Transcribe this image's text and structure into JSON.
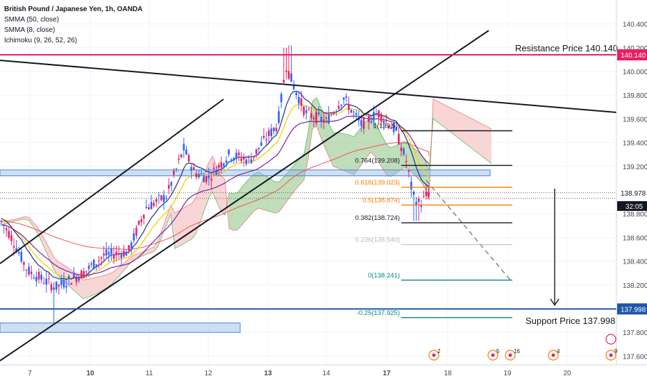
{
  "legend": {
    "symbol": "British Pound / Japanese Yen, 1h, OANDA",
    "ind1": "SMMA (50, close)",
    "ind2": "SMMA (8, close)",
    "ind3": "Ichimoku (9, 26, 52, 26)"
  },
  "annotations": {
    "resistance": "Resistance Price 140.140",
    "support": "Support Price 137.998"
  },
  "price_axis": {
    "ticks": [
      "140.400",
      "140.200",
      "140.000",
      "139.800",
      "139.600",
      "139.400",
      "139.200",
      "138.800",
      "138.600",
      "138.400",
      "138.200",
      "137.800",
      "137.600"
    ],
    "resistance_tag": "140.140",
    "last_tag": "138.978",
    "countdown_tag": "32:05",
    "support_tag": "137.998"
  },
  "time_axis": {
    "ticks": [
      "7",
      "10",
      "11",
      "12",
      "13",
      "14",
      "17",
      "18",
      "19",
      "20"
    ]
  },
  "fib": {
    "labels": [
      "0.764(139.208)",
      "0.618(139.023)",
      "0.5(138.874)",
      "0.382(138.724)",
      "0.236(138.540)",
      "0(138.241)",
      "-0.25(137.925)"
    ],
    "partial_label": "1(139.5)"
  },
  "event_badges": [
    "2",
    "5",
    "16",
    "4",
    "9"
  ],
  "colors": {
    "up": "#2962ff",
    "down": "#e91e63",
    "smma50": "#ef5350",
    "smma8": "#f5d10e",
    "tenkan": "#1e2b8f",
    "kijun": "#7b1fa2",
    "cloud_bull": "#8bc37f",
    "cloud_bear": "#f4b4b4",
    "resistance": "#e91e63",
    "support": "#1e55a8",
    "zone": "#90b8e8",
    "fib_orange": "#f57c00",
    "fib_teal": "#00897b"
  },
  "chart_data": {
    "type": "candlestick",
    "symbol": "GBPJPY",
    "interval": "1h",
    "y_range": [
      137.55,
      140.52
    ],
    "x_ticks": [
      "7",
      "10",
      "11",
      "12",
      "13",
      "14",
      "17",
      "18",
      "19",
      "20"
    ],
    "close_path": [
      {
        "x": "7",
        "y": 138.75
      },
      {
        "x": "7",
        "y": 138.6
      },
      {
        "x": "7",
        "y": 138.32
      },
      {
        "x": "10",
        "y": 138.22
      },
      {
        "x": "10",
        "y": 138.45
      },
      {
        "x": "11",
        "y": 138.9
      },
      {
        "x": "11",
        "y": 139.33
      },
      {
        "x": "12",
        "y": 139.1
      },
      {
        "x": "12",
        "y": 139.42
      },
      {
        "x": "13",
        "y": 139.5
      },
      {
        "x": "13",
        "y": 140.08
      },
      {
        "x": "14",
        "y": 139.65
      },
      {
        "x": "14",
        "y": 139.55
      },
      {
        "x": "17",
        "y": 139.62
      },
      {
        "x": "17",
        "y": 138.85
      },
      {
        "x": "17",
        "y": 138.978
      }
    ],
    "horizontal_levels": [
      {
        "label": "Resistance Price 140.140",
        "value": 140.14
      },
      {
        "label": "Support Price 137.998",
        "value": 137.998
      }
    ],
    "fib_levels": [
      {
        "ratio": "1",
        "value": 139.5
      },
      {
        "ratio": "0.764",
        "value": 139.208
      },
      {
        "ratio": "0.618",
        "value": 139.023
      },
      {
        "ratio": "0.5",
        "value": 138.874
      },
      {
        "ratio": "0.382",
        "value": 138.724
      },
      {
        "ratio": "0.236",
        "value": 138.54
      },
      {
        "ratio": "0",
        "value": 138.241
      },
      {
        "ratio": "-0.25",
        "value": 137.925
      }
    ],
    "last_price": 138.978,
    "zones": [
      {
        "from": 139.12,
        "to": 139.17
      },
      {
        "from": 137.8,
        "to": 137.88
      }
    ]
  }
}
